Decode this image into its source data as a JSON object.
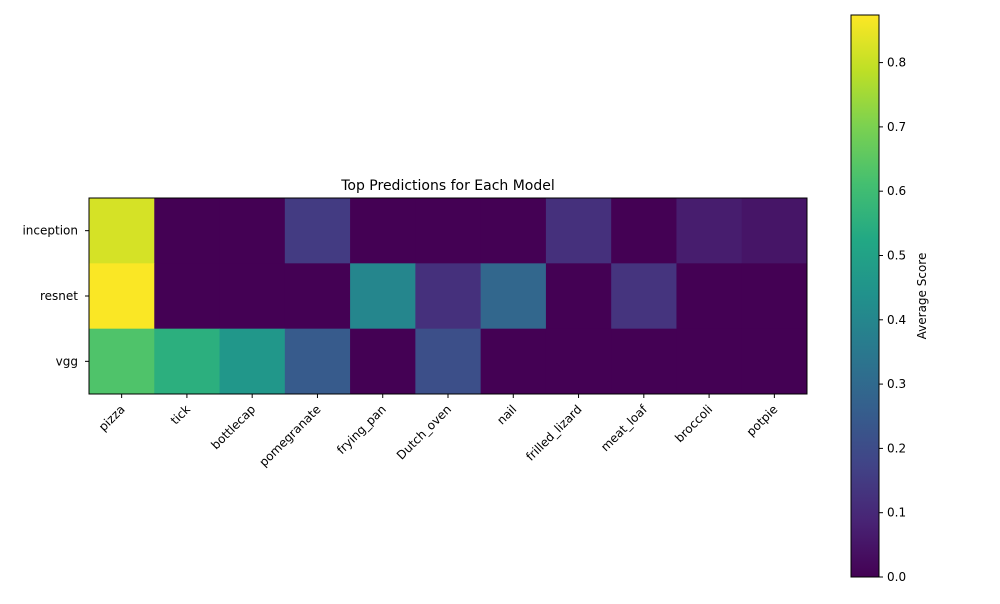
{
  "chart_data": {
    "type": "heatmap",
    "title": "Top Predictions for Each Model",
    "xlabel": "",
    "ylabel": "",
    "x_categories": [
      "pizza",
      "tick",
      "bottlecap",
      "pomegranate",
      "frying_pan",
      "Dutch_oven",
      "nail",
      "frilled_lizard",
      "meat_loaf",
      "broccoli",
      "potpie"
    ],
    "y_categories": [
      "inception",
      "resnet",
      "vgg"
    ],
    "values": [
      [
        0.82,
        0.0,
        0.0,
        0.15,
        0.0,
        0.0,
        0.0,
        0.12,
        0.0,
        0.07,
        0.05
      ],
      [
        0.87,
        0.0,
        0.0,
        0.0,
        0.4,
        0.12,
        0.29,
        0.0,
        0.13,
        0.0,
        0.0
      ],
      [
        0.63,
        0.55,
        0.46,
        0.25,
        0.0,
        0.21,
        0.0,
        0.0,
        0.0,
        0.0,
        0.0
      ]
    ],
    "colormap": "viridis",
    "colorbar": {
      "label": "Average Score",
      "range": [
        0,
        0.874
      ],
      "ticks": [
        0.0,
        0.1,
        0.2,
        0.3,
        0.4,
        0.5,
        0.6,
        0.7,
        0.8
      ],
      "tick_labels": [
        "0.0",
        "0.1",
        "0.2",
        "0.3",
        "0.4",
        "0.5",
        "0.6",
        "0.7",
        "0.8"
      ]
    },
    "grid": false
  }
}
